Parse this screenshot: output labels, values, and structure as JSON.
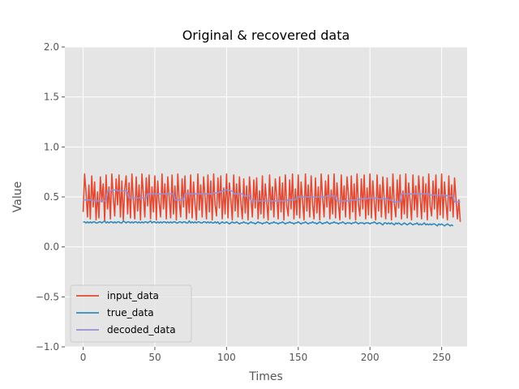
{
  "chart_data": {
    "type": "line",
    "title": "Original & recovered data",
    "xlabel": "Times",
    "ylabel": "Value",
    "xlim": [
      -12.75,
      267.75
    ],
    "ylim": [
      -1.0,
      2.0
    ],
    "xticks": [
      0,
      50,
      100,
      150,
      200,
      250
    ],
    "yticks": [
      -1.0,
      -0.5,
      0.0,
      0.5,
      1.0,
      1.5,
      2.0
    ],
    "xtick_labels": [
      "0",
      "50",
      "100",
      "150",
      "200",
      "250"
    ],
    "ytick_labels": [
      "−1.0",
      "−0.5",
      "0.0",
      "0.5",
      "1.0",
      "1.5",
      "2.0"
    ],
    "grid": true,
    "legend_position": "lower-left",
    "style": "ggplot",
    "series": [
      {
        "name": "input_data",
        "color": "#E24A33",
        "x_start": 0,
        "values": [
          0.35,
          0.73,
          0.55,
          0.3,
          0.62,
          0.28,
          0.71,
          0.4,
          0.65,
          0.27,
          0.55,
          0.29,
          0.7,
          0.45,
          0.63,
          0.26,
          0.72,
          0.38,
          0.6,
          0.28,
          0.73,
          0.5,
          0.31,
          0.68,
          0.42,
          0.72,
          0.3,
          0.66,
          0.27,
          0.58,
          0.71,
          0.33,
          0.64,
          0.29,
          0.73,
          0.47,
          0.28,
          0.7,
          0.36,
          0.62,
          0.27,
          0.73,
          0.52,
          0.3,
          0.69,
          0.41,
          0.72,
          0.28,
          0.6,
          0.35,
          0.71,
          0.27,
          0.66,
          0.44,
          0.3,
          0.73,
          0.38,
          0.63,
          0.28,
          0.7,
          0.49,
          0.29,
          0.72,
          0.33,
          0.61,
          0.27,
          0.73,
          0.46,
          0.3,
          0.68,
          0.4,
          0.71,
          0.28,
          0.57,
          0.34,
          0.72,
          0.29,
          0.65,
          0.43,
          0.27,
          0.73,
          0.37,
          0.62,
          0.3,
          0.7,
          0.5,
          0.28,
          0.72,
          0.35,
          0.66,
          0.27,
          0.73,
          0.42,
          0.31,
          0.69,
          0.39,
          0.71,
          0.28,
          0.59,
          0.33,
          0.73,
          0.29,
          0.64,
          0.47,
          0.27,
          0.72,
          0.36,
          0.63,
          0.3,
          0.7,
          0.44,
          0.28,
          0.68,
          0.34,
          0.61,
          0.27,
          0.7,
          0.48,
          0.3,
          0.67,
          0.39,
          0.69,
          0.28,
          0.56,
          0.33,
          0.71,
          0.29,
          0.63,
          0.45,
          0.27,
          0.72,
          0.37,
          0.6,
          0.3,
          0.68,
          0.51,
          0.28,
          0.7,
          0.35,
          0.64,
          0.27,
          0.72,
          0.41,
          0.31,
          0.67,
          0.38,
          0.73,
          0.28,
          0.58,
          0.32,
          0.72,
          0.29,
          0.65,
          0.46,
          0.27,
          0.73,
          0.36,
          0.62,
          0.3,
          0.71,
          0.43,
          0.28,
          0.69,
          0.34,
          0.6,
          0.27,
          0.73,
          0.49,
          0.3,
          0.66,
          0.4,
          0.72,
          0.28,
          0.57,
          0.33,
          0.73,
          0.29,
          0.64,
          0.44,
          0.27,
          0.72,
          0.37,
          0.61,
          0.3,
          0.7,
          0.52,
          0.28,
          0.71,
          0.35,
          0.63,
          0.27,
          0.73,
          0.42,
          0.31,
          0.68,
          0.38,
          0.72,
          0.28,
          0.59,
          0.32,
          0.73,
          0.29,
          0.66,
          0.45,
          0.27,
          0.72,
          0.36,
          0.62,
          0.3,
          0.7,
          0.47,
          0.28,
          0.69,
          0.34,
          0.6,
          0.27,
          0.73,
          0.43,
          0.3,
          0.67,
          0.39,
          0.72,
          0.28,
          0.56,
          0.33,
          0.73,
          0.29,
          0.64,
          0.46,
          0.27,
          0.72,
          0.37,
          0.61,
          0.3,
          0.71,
          0.5,
          0.28,
          0.7,
          0.35,
          0.63,
          0.27,
          0.73,
          0.41,
          0.31,
          0.66,
          0.38,
          0.72,
          0.28,
          0.58,
          0.32,
          0.73,
          0.29,
          0.65,
          0.44,
          0.27,
          0.71,
          0.36,
          0.62,
          0.3,
          0.69,
          0.48,
          0.28,
          0.47,
          0.25
        ]
      },
      {
        "name": "true_data",
        "color": "#348ABD",
        "x_start": 0,
        "values": [
          0.25,
          0.25,
          0.24,
          0.25,
          0.24,
          0.25,
          0.24,
          0.25,
          0.25,
          0.24,
          0.24,
          0.25,
          0.25,
          0.24,
          0.25,
          0.26,
          0.24,
          0.25,
          0.24,
          0.25,
          0.25,
          0.24,
          0.25,
          0.24,
          0.25,
          0.25,
          0.24,
          0.24,
          0.26,
          0.25,
          0.24,
          0.25,
          0.25,
          0.24,
          0.25,
          0.24,
          0.25,
          0.25,
          0.24,
          0.25,
          0.24,
          0.25,
          0.24,
          0.25,
          0.25,
          0.24,
          0.25,
          0.26,
          0.24,
          0.25,
          0.25,
          0.24,
          0.25,
          0.24,
          0.25,
          0.24,
          0.25,
          0.25,
          0.24,
          0.25,
          0.24,
          0.25,
          0.24,
          0.25,
          0.25,
          0.24,
          0.24,
          0.25,
          0.25,
          0.24,
          0.25,
          0.25,
          0.24,
          0.24,
          0.26,
          0.24,
          0.25,
          0.24,
          0.25,
          0.24,
          0.25,
          0.25,
          0.24,
          0.24,
          0.25,
          0.25,
          0.24,
          0.25,
          0.24,
          0.25,
          0.24,
          0.24,
          0.25,
          0.24,
          0.25,
          0.23,
          0.24,
          0.25,
          0.24,
          0.24,
          0.25,
          0.24,
          0.23,
          0.24,
          0.25,
          0.24,
          0.24,
          0.25,
          0.24,
          0.23,
          0.24,
          0.24,
          0.25,
          0.24,
          0.24,
          0.23,
          0.24,
          0.25,
          0.24,
          0.24,
          0.23,
          0.24,
          0.25,
          0.24,
          0.24,
          0.23,
          0.24,
          0.24,
          0.25,
          0.24,
          0.23,
          0.24,
          0.24,
          0.25,
          0.24,
          0.24,
          0.23,
          0.24,
          0.24,
          0.25,
          0.24,
          0.23,
          0.24,
          0.24,
          0.25,
          0.24,
          0.24,
          0.23,
          0.24,
          0.24,
          0.25,
          0.24,
          0.23,
          0.24,
          0.24,
          0.25,
          0.24,
          0.23,
          0.24,
          0.24,
          0.25,
          0.24,
          0.24,
          0.23,
          0.24,
          0.25,
          0.24,
          0.23,
          0.24,
          0.24,
          0.25,
          0.24,
          0.23,
          0.24,
          0.24,
          0.25,
          0.24,
          0.24,
          0.23,
          0.24,
          0.24,
          0.25,
          0.24,
          0.23,
          0.24,
          0.24,
          0.24,
          0.23,
          0.24,
          0.24,
          0.25,
          0.24,
          0.23,
          0.24,
          0.24,
          0.24,
          0.23,
          0.24,
          0.24,
          0.24,
          0.23,
          0.24,
          0.24,
          0.25,
          0.24,
          0.23,
          0.24,
          0.24,
          0.23,
          0.22,
          0.24,
          0.24,
          0.23,
          0.24,
          0.23,
          0.24,
          0.23,
          0.22,
          0.24,
          0.23,
          0.24,
          0.23,
          0.22,
          0.23,
          0.24,
          0.23,
          0.22,
          0.23,
          0.24,
          0.23,
          0.22,
          0.23,
          0.23,
          0.24,
          0.22,
          0.23,
          0.22,
          0.23,
          0.24,
          0.22,
          0.23,
          0.22,
          0.23,
          0.22,
          0.23,
          0.23,
          0.22,
          0.21,
          0.23,
          0.22,
          0.23,
          0.22,
          0.21,
          0.22,
          0.23,
          0.22,
          0.21,
          0.22,
          0.21
        ]
      },
      {
        "name": "decoded_data",
        "color": "#988ED5",
        "x_start": 0,
        "values": [
          0.47,
          0.47,
          0.47,
          0.47,
          0.47,
          0.47,
          0.47,
          0.46,
          0.46,
          0.46,
          0.46,
          0.46,
          0.46,
          0.46,
          0.46,
          0.46,
          0.47,
          0.56,
          0.56,
          0.56,
          0.57,
          0.57,
          0.57,
          0.57,
          0.56,
          0.56,
          0.56,
          0.56,
          0.56,
          0.56,
          0.56,
          0.55,
          0.49,
          0.49,
          0.49,
          0.49,
          0.49,
          0.49,
          0.49,
          0.49,
          0.49,
          0.49,
          0.49,
          0.49,
          0.49,
          0.53,
          0.53,
          0.53,
          0.53,
          0.53,
          0.53,
          0.53,
          0.53,
          0.53,
          0.53,
          0.53,
          0.53,
          0.53,
          0.53,
          0.53,
          0.53,
          0.53,
          0.53,
          0.53,
          0.47,
          0.47,
          0.47,
          0.47,
          0.47,
          0.47,
          0.47,
          0.53,
          0.53,
          0.53,
          0.53,
          0.53,
          0.53,
          0.53,
          0.53,
          0.53,
          0.53,
          0.53,
          0.53,
          0.53,
          0.53,
          0.53,
          0.53,
          0.53,
          0.53,
          0.53,
          0.54,
          0.54,
          0.54,
          0.54,
          0.54,
          0.55,
          0.55,
          0.56,
          0.56,
          0.57,
          0.57,
          0.57,
          0.57,
          0.56,
          0.56,
          0.53,
          0.53,
          0.53,
          0.53,
          0.53,
          0.53,
          0.53,
          0.51,
          0.51,
          0.51,
          0.51,
          0.51,
          0.46,
          0.46,
          0.46,
          0.46,
          0.46,
          0.46,
          0.46,
          0.46,
          0.46,
          0.46,
          0.46,
          0.46,
          0.46,
          0.46,
          0.46,
          0.46,
          0.46,
          0.46,
          0.46,
          0.46,
          0.46,
          0.46,
          0.46,
          0.46,
          0.46,
          0.46,
          0.47,
          0.47,
          0.47,
          0.47,
          0.47,
          0.47,
          0.5,
          0.5,
          0.5,
          0.5,
          0.5,
          0.5,
          0.5,
          0.5,
          0.5,
          0.5,
          0.5,
          0.5,
          0.5,
          0.5,
          0.5,
          0.5,
          0.5,
          0.5,
          0.5,
          0.5,
          0.5,
          0.51,
          0.51,
          0.51,
          0.51,
          0.51,
          0.51,
          0.51,
          0.46,
          0.46,
          0.46,
          0.46,
          0.46,
          0.46,
          0.46,
          0.46,
          0.46,
          0.47,
          0.47,
          0.47,
          0.47,
          0.47,
          0.47,
          0.47,
          0.48,
          0.48,
          0.48,
          0.48,
          0.48,
          0.48,
          0.49,
          0.49,
          0.49,
          0.49,
          0.49,
          0.49,
          0.49,
          0.48,
          0.48,
          0.48,
          0.48,
          0.48,
          0.48,
          0.48,
          0.47,
          0.47,
          0.47,
          0.45,
          0.45,
          0.45,
          0.45,
          0.45,
          0.45,
          0.53,
          0.53,
          0.53,
          0.53,
          0.53,
          0.53,
          0.53,
          0.53,
          0.53,
          0.53,
          0.53,
          0.53,
          0.53,
          0.53,
          0.53,
          0.53,
          0.53,
          0.53,
          0.53,
          0.53,
          0.52,
          0.52,
          0.52,
          0.52,
          0.52,
          0.52,
          0.52,
          0.52,
          0.52,
          0.52,
          0.52,
          0.52,
          0.51,
          0.51,
          0.51,
          0.51,
          0.51,
          0.45,
          0.45,
          0.45,
          0.45,
          0.45
        ]
      }
    ]
  }
}
